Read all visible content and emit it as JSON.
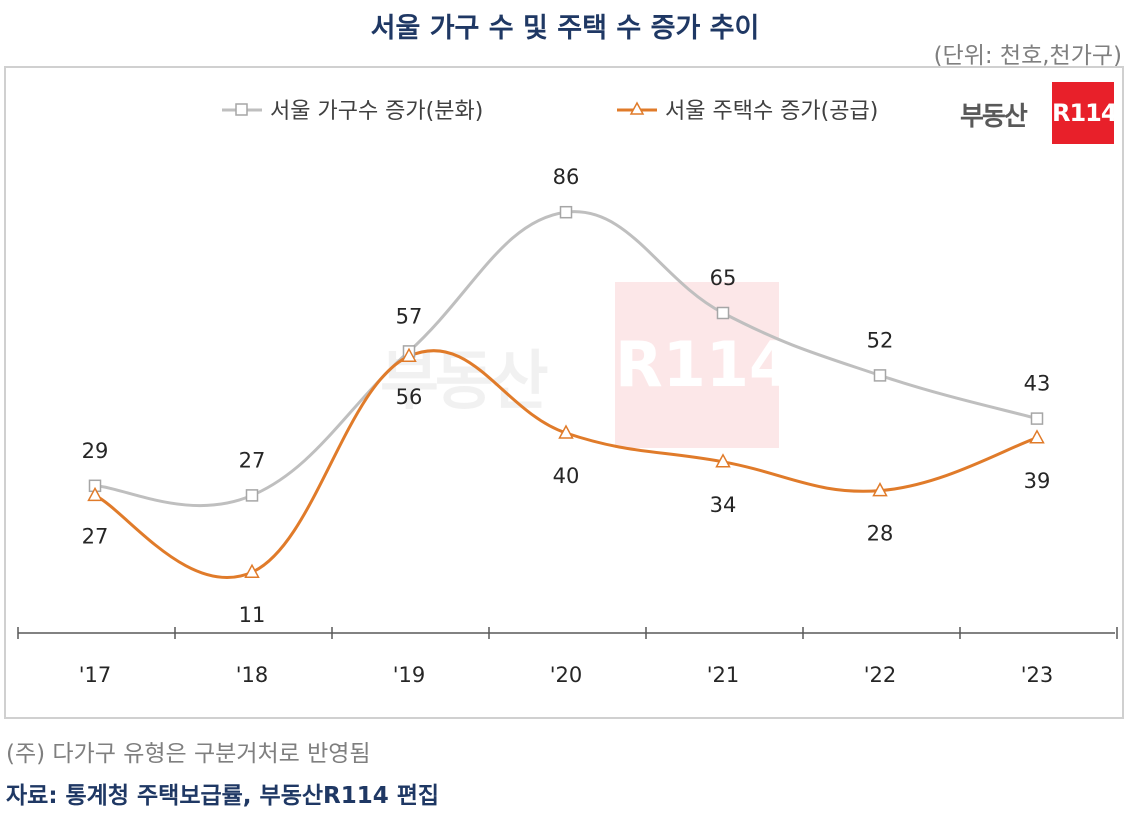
{
  "title": "서울 가구 수 및 주택 수 증가 추이",
  "unit": "(단위: 천호,천가구)",
  "footnote": "(주) 다가구 유형은 구분거처로 반영됨",
  "source": "자료: 통계청 주택보급률, 부동산R114 편집",
  "logo": {
    "text": "부동산",
    "box": "R114"
  },
  "watermark": {
    "text": "부동산",
    "box": "R114"
  },
  "colors": {
    "households": "#bfbfbf",
    "housing": "#e07b2a",
    "title": "#1f3864",
    "logo_red": "#e8202a"
  },
  "chart_data": {
    "type": "line",
    "categories": [
      "'17",
      "'18",
      "'19",
      "'20",
      "'21",
      "'22",
      "'23"
    ],
    "series": [
      {
        "name": "서울 가구수 증가(분화)",
        "values": [
          29,
          27,
          57,
          86,
          65,
          52,
          43
        ],
        "marker": "square",
        "color": "#bfbfbf"
      },
      {
        "name": "서울 주택수 증가(공급)",
        "values": [
          27,
          11,
          56,
          40,
          34,
          28,
          39
        ],
        "marker": "triangle",
        "color": "#e07b2a"
      }
    ],
    "legend": "top",
    "grid": false,
    "smooth": true
  }
}
